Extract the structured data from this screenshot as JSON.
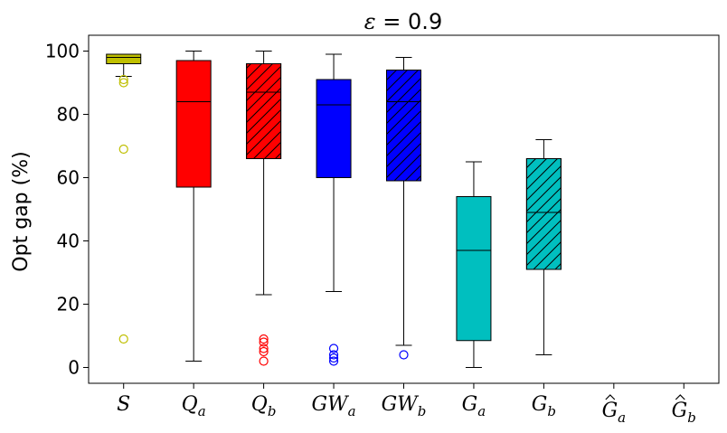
{
  "chart_data": {
    "type": "box",
    "title": {
      "symbol": "ε",
      "rest": " = 0.9"
    },
    "ylabel": "Opt gap (%)",
    "ylim": [
      -5,
      105
    ],
    "yticks": [
      0,
      20,
      40,
      60,
      80,
      100
    ],
    "grid": false,
    "categories": [
      {
        "base": "S",
        "sub": "",
        "hat": false
      },
      {
        "base": "Q",
        "sub": "a",
        "hat": false
      },
      {
        "base": "Q",
        "sub": "b",
        "hat": false
      },
      {
        "base": "GW",
        "sub": "a",
        "hat": false
      },
      {
        "base": "GW",
        "sub": "b",
        "hat": false
      },
      {
        "base": "G",
        "sub": "a",
        "hat": false
      },
      {
        "base": "G",
        "sub": "b",
        "hat": false
      },
      {
        "base": "G",
        "sub": "a",
        "hat": true
      },
      {
        "base": "G",
        "sub": "b",
        "hat": true
      }
    ],
    "boxes": [
      {
        "whisker_low": 92,
        "q1": 96,
        "median": 98,
        "q3": 99,
        "whisker_high": 99,
        "outliers": [
          91,
          90,
          69,
          9
        ],
        "color": "#bfbf00",
        "hatch": false
      },
      {
        "whisker_low": 2,
        "q1": 57,
        "median": 84,
        "q3": 97,
        "whisker_high": 100,
        "outliers": [],
        "color": "#ff0000",
        "hatch": false
      },
      {
        "whisker_low": 23,
        "q1": 66,
        "median": 87,
        "q3": 96,
        "whisker_high": 100,
        "outliers": [
          9,
          8,
          6,
          5,
          2
        ],
        "color": "#ff0000",
        "hatch": true
      },
      {
        "whisker_low": 24,
        "q1": 60,
        "median": 83,
        "q3": 91,
        "whisker_high": 99,
        "outliers": [
          6,
          4,
          3,
          2
        ],
        "color": "#0000ff",
        "hatch": false
      },
      {
        "whisker_low": 7,
        "q1": 59,
        "median": 84,
        "q3": 94,
        "whisker_high": 98,
        "outliers": [
          4
        ],
        "color": "#0000ff",
        "hatch": true
      },
      {
        "whisker_low": 0,
        "q1": 8.5,
        "median": 37,
        "q3": 54,
        "whisker_high": 65,
        "outliers": [],
        "color": "#00bfbf",
        "hatch": false
      },
      {
        "whisker_low": 4,
        "q1": 31,
        "median": 49,
        "q3": 66,
        "whisker_high": 72,
        "outliers": [],
        "color": "#00bfbf",
        "hatch": true
      },
      null,
      null
    ]
  }
}
